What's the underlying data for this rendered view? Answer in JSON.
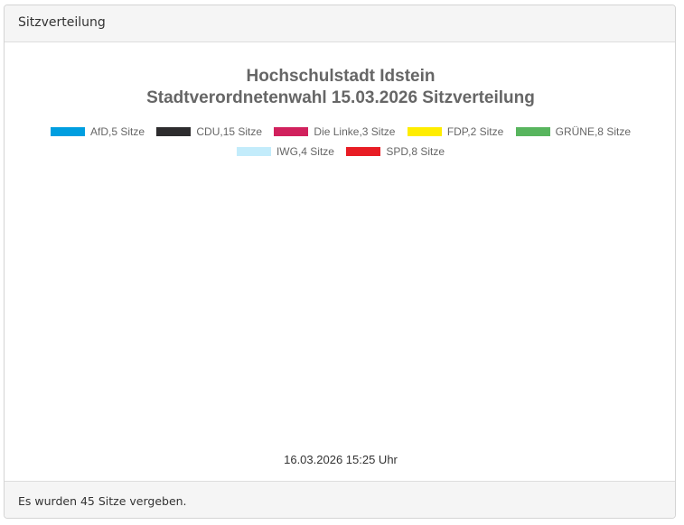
{
  "panel": {
    "header": "Sitzverteilung",
    "footer": "Es wurden 45 Sitze vergeben."
  },
  "chart_data": {
    "type": "pie",
    "variant": "semicircle-parliament",
    "title": "Hochschulstadt Idstein",
    "subtitle": "Stadtverordnetenwahl 15.03.2026 Sitzverteilung",
    "timestamp": "16.03.2026 15:25 Uhr",
    "total_seats": 45,
    "legend_position": "top-center",
    "series": [
      {
        "name": "AfD",
        "label": "AfD,5 Sitze",
        "value": 5,
        "color": "#009ee0"
      },
      {
        "name": "CDU",
        "label": "CDU,15 Sitze",
        "value": 15,
        "color": "#2d2c2e"
      },
      {
        "name": "Die Linke",
        "label": "Die Linke,3 Sitze",
        "value": 3,
        "color": "#d1215d"
      },
      {
        "name": "FDP",
        "label": "FDP,2 Sitze",
        "value": 2,
        "color": "#ffed00"
      },
      {
        "name": "GRÜNE",
        "label": "GRÜNE,8 Sitze",
        "value": 8,
        "color": "#58b55e"
      },
      {
        "name": "IWG",
        "label": "IWG,4 Sitze",
        "value": 4,
        "color": "#c3ecfb"
      },
      {
        "name": "SPD",
        "label": "SPD,8 Sitze",
        "value": 8,
        "color": "#e81d25"
      }
    ]
  }
}
